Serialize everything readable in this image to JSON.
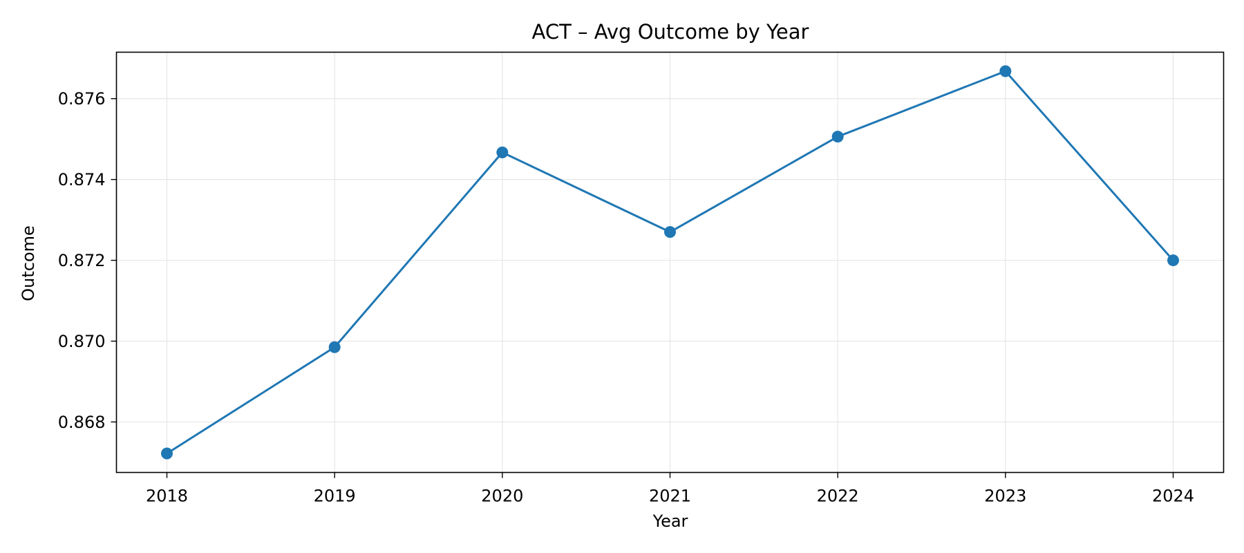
{
  "chart_data": {
    "type": "line",
    "title": "ACT – Avg Outcome by Year",
    "xlabel": "Year",
    "ylabel": "Outcome",
    "x": [
      2018,
      2019,
      2020,
      2021,
      2022,
      2023,
      2024
    ],
    "x_tick_labels": [
      "2018",
      "2019",
      "2020",
      "2021",
      "2022",
      "2023",
      "2024"
    ],
    "y_ticks": [
      0.868,
      0.87,
      0.872,
      0.874,
      0.876
    ],
    "y_tick_labels": [
      "0.868",
      "0.870",
      "0.872",
      "0.874",
      "0.876"
    ],
    "ylim": [
      0.86675,
      0.87715
    ],
    "grid": true,
    "legend": "none",
    "series": [
      {
        "values": [
          0.86722,
          0.86985,
          0.87467,
          0.8727,
          0.87506,
          0.87668,
          0.872
        ],
        "color": "#1f77b4",
        "marker": "circle"
      }
    ]
  }
}
